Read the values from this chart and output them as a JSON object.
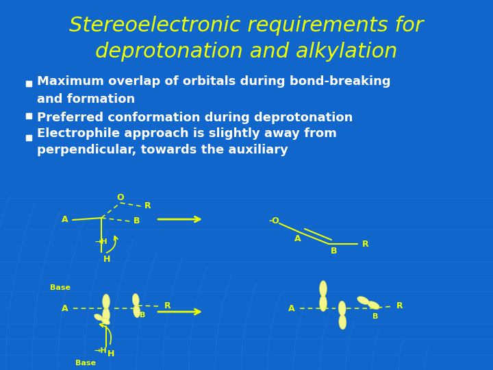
{
  "title_line1": "Stereoelectronic requirements for",
  "title_line2": "deprotonation and alkylation",
  "title_color": "#EEFF00",
  "title_fontsize": 22,
  "bullet_color": "#FFFFFF",
  "bullet_fontsize": 13,
  "bullets": [
    "Maximum overlap of orbitals during bond-breaking\nand formation",
    "Preferred conformation during deprotonation",
    "Electrophile approach is slightly away from\nperpendicular, towards the auxiliary"
  ],
  "bg_color": "#1166CC",
  "grid_color": "#4488EE",
  "diagram_color": "#EEFF00",
  "orbital_color": "#FFFF88",
  "fig_width": 7.2,
  "fig_height": 5.4,
  "dpi": 100
}
